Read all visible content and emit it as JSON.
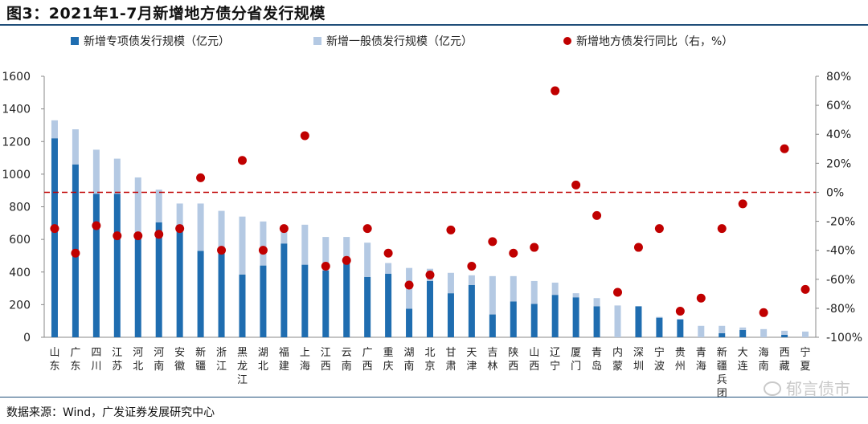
{
  "title": "图3：2021年1-7月新增地方债分省发行规模",
  "source": "数据来源：Wind，广发证券发展研究中心",
  "watermark": "郁言债市",
  "chart_data": {
    "type": "bar",
    "stacked": true,
    "categories": [
      "山东",
      "广东",
      "四川",
      "江苏",
      "河北",
      "河南",
      "安徽",
      "新疆",
      "浙江",
      "黑龙江",
      "湖北",
      "福建",
      "上海",
      "江西",
      "云南",
      "广西",
      "重庆",
      "湖南",
      "北京",
      "甘肃",
      "天津",
      "吉林",
      "陕西",
      "山西",
      "辽宁",
      "厦门",
      "青岛",
      "内蒙",
      "深圳",
      "宁波",
      "贵州",
      "青海",
      "新疆兵团",
      "大连",
      "海南",
      "西藏",
      "宁夏"
    ],
    "series": [
      {
        "name": "新增专项债发行规模（亿元）",
        "axis": "left",
        "color": "#1f6db0",
        "values": [
          1220,
          1060,
          880,
          880,
          610,
          705,
          690,
          530,
          550,
          385,
          440,
          575,
          445,
          410,
          470,
          370,
          390,
          175,
          345,
          270,
          320,
          140,
          220,
          205,
          260,
          245,
          190,
          0,
          190,
          120,
          110,
          0,
          25,
          45,
          0,
          15,
          0
        ]
      },
      {
        "name": "新增一般债发行规模（亿元）",
        "axis": "left",
        "color": "#b4c9e3",
        "values": [
          110,
          215,
          270,
          215,
          370,
          200,
          130,
          290,
          225,
          355,
          270,
          105,
          245,
          205,
          145,
          210,
          65,
          250,
          75,
          125,
          60,
          235,
          155,
          140,
          75,
          25,
          50,
          195,
          0,
          5,
          0,
          70,
          45,
          15,
          50,
          25,
          35
        ]
      },
      {
        "name": "新增地方债发行同比（右，%）",
        "axis": "right",
        "type": "scatter",
        "color": "#c00000",
        "values": [
          -25,
          -42,
          -23,
          -30,
          -30,
          -29,
          -25,
          10,
          -40,
          22,
          -40,
          -25,
          39,
          -51,
          -47,
          -25,
          -42,
          -64,
          -57,
          -26,
          -51,
          -34,
          -42,
          -38,
          70,
          5,
          -16,
          -69,
          -38,
          -25,
          -82,
          -73,
          -25,
          -8,
          -83,
          30,
          -67
        ]
      }
    ],
    "left_axis": {
      "min": 0,
      "max": 1600,
      "ticks": [
        0,
        200,
        400,
        600,
        800,
        1000,
        1200,
        1400,
        1600
      ],
      "labels": [
        "0",
        "200",
        "400",
        "600",
        "800",
        "1000",
        "1200",
        "1400",
        "1600"
      ]
    },
    "right_axis": {
      "min": -100,
      "max": 80,
      "ticks": [
        -100,
        -80,
        -60,
        -40,
        -20,
        0,
        20,
        40,
        60,
        80
      ],
      "labels": [
        "-100%",
        "-80%",
        "-60%",
        "-40%",
        "-20%",
        "0%",
        "20%",
        "40%",
        "60%",
        "80%"
      ]
    },
    "reference_line": {
      "axis": "right",
      "value": 0,
      "color": "#c00000",
      "style": "dashed"
    },
    "legend_position": "top"
  }
}
